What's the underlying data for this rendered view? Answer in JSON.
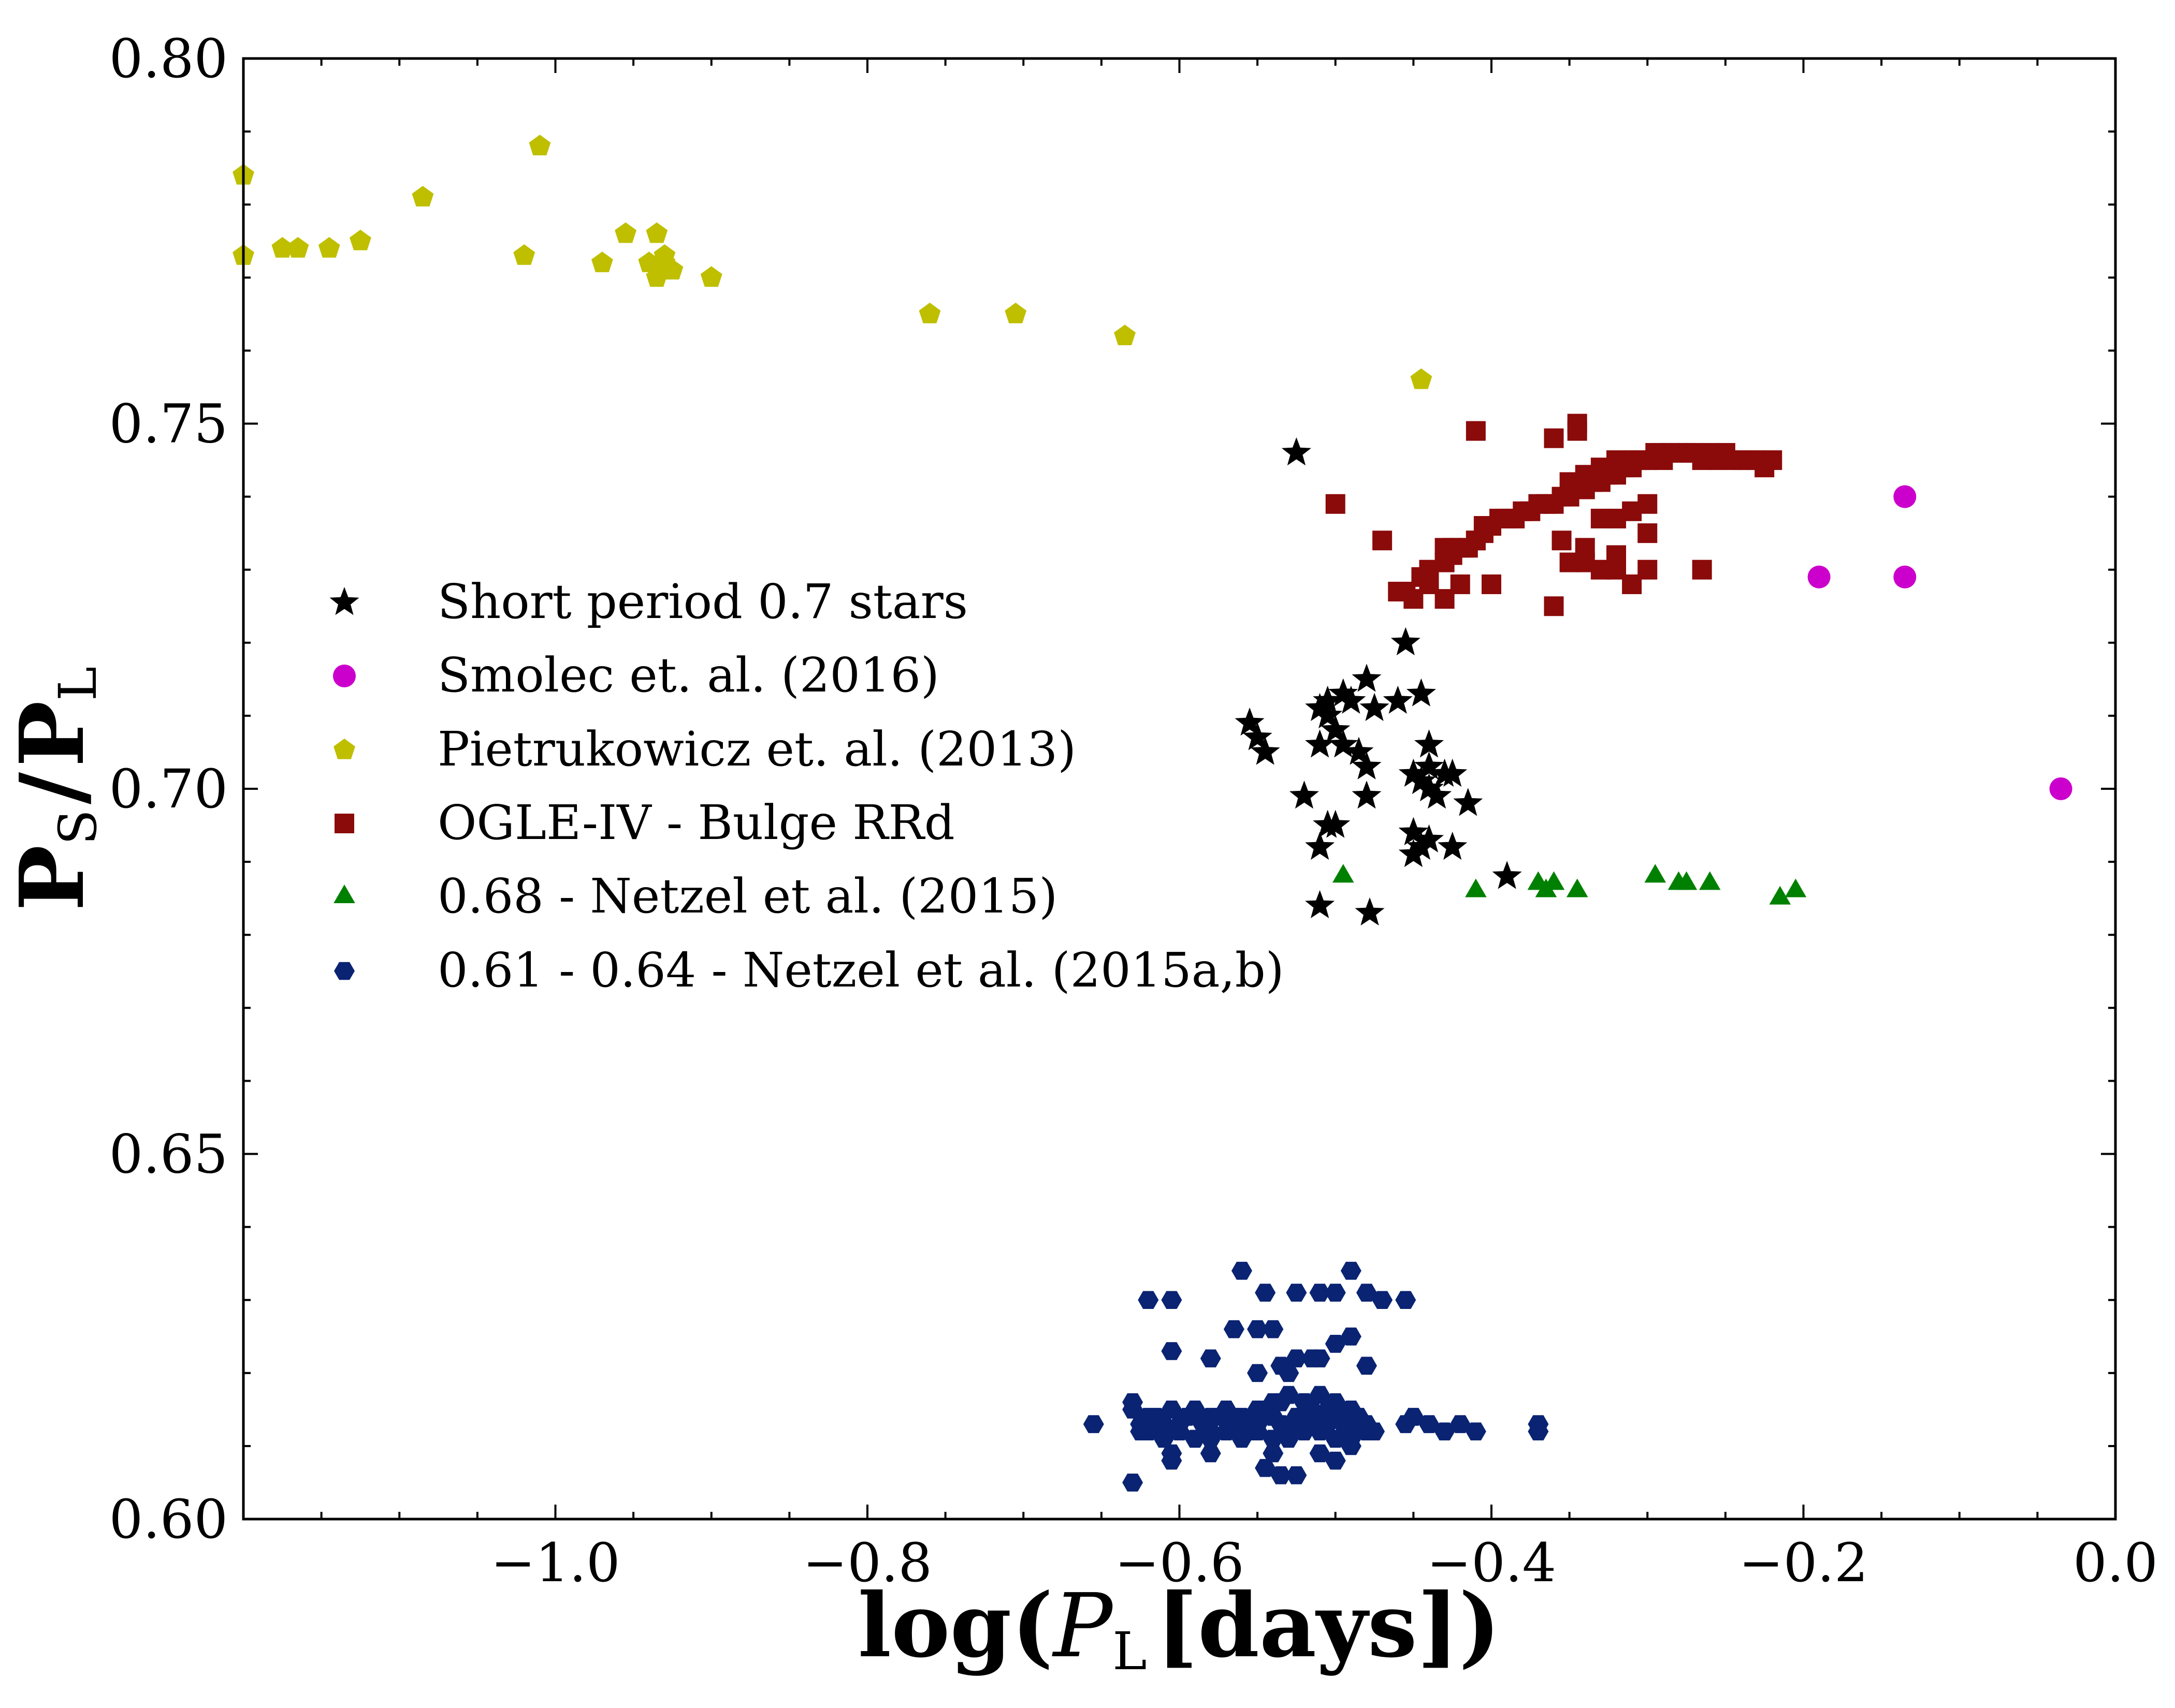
{
  "chart_data": {
    "type": "scatter",
    "xlabel_main": "log(",
    "xlabel_var": "P",
    "xlabel_sub": "L",
    "xlabel_unit": "[days])",
    "ylabel_num": "P",
    "ylabel_num_sub": "S",
    "ylabel_slash": "/",
    "ylabel_den": "P",
    "ylabel_den_sub": "L",
    "xlim": [
      -1.2,
      0.0
    ],
    "ylim": [
      0.6,
      0.8
    ],
    "xticks": [
      -1.0,
      -0.8,
      -0.6,
      -0.4,
      -0.2,
      0.0
    ],
    "xtick_labels": [
      "−1.0",
      "−0.8",
      "−0.6",
      "−0.4",
      "−0.2",
      "0.0"
    ],
    "yticks": [
      0.6,
      0.65,
      0.7,
      0.75,
      0.8
    ],
    "ytick_labels": [
      "0.60",
      "0.65",
      "0.70",
      "0.75",
      "0.80"
    ],
    "grid": false,
    "legend_position": "center-left",
    "series": [
      {
        "name": "Short period 0.7 stars",
        "marker": "star",
        "color": "#000000",
        "x": [
          -0.525,
          -0.555,
          -0.55,
          -0.545,
          -0.51,
          -0.505,
          -0.505,
          -0.495,
          -0.495,
          -0.49,
          -0.51,
          -0.5,
          -0.52,
          -0.485,
          -0.505,
          -0.48,
          -0.48,
          -0.475,
          -0.455,
          -0.46,
          -0.445,
          -0.45,
          -0.44,
          -0.44,
          -0.44,
          -0.43,
          -0.435,
          -0.445,
          -0.45,
          -0.425,
          -0.44,
          -0.45,
          -0.415,
          -0.39,
          -0.5,
          -0.48,
          -0.45,
          -0.445,
          -0.425,
          -0.51
        ],
        "y": [
          0.746,
          0.709,
          0.707,
          0.705,
          0.711,
          0.712,
          0.71,
          0.706,
          0.713,
          0.712,
          0.706,
          0.708,
          0.699,
          0.705,
          0.695,
          0.703,
          0.715,
          0.711,
          0.72,
          0.712,
          0.713,
          0.702,
          0.706,
          0.7,
          0.703,
          0.702,
          0.699,
          0.701,
          0.694,
          0.692,
          0.693,
          0.691,
          0.698,
          0.688,
          0.695,
          0.699,
          0.694,
          0.692,
          0.702,
          0.692
        ],
        "extra_low": {
          "x": [
            -0.51,
            -0.478
          ],
          "y": [
            0.684,
            0.683
          ]
        }
      },
      {
        "name": "Smolec et. al. (2016)",
        "marker": "circle",
        "color": "#cc00cc",
        "x": [
          -0.19,
          -0.135,
          -0.135,
          -0.035
        ],
        "y": [
          0.729,
          0.74,
          0.729,
          0.7
        ]
      },
      {
        "name": "Pietrukowicz et. al. (2013)",
        "marker": "pentagon",
        "color": "#bfbf00",
        "x": [
          -1.2,
          -1.2,
          -1.175,
          -1.165,
          -1.145,
          -1.125,
          -1.085,
          -1.02,
          -1.01,
          -0.97,
          -0.955,
          -0.94,
          -0.935,
          -0.93,
          -0.925,
          -0.93,
          -0.935,
          -0.9,
          -0.76,
          -0.705,
          -0.635,
          -0.445
        ],
        "y": [
          0.773,
          0.784,
          0.774,
          0.774,
          0.774,
          0.775,
          0.781,
          0.773,
          0.788,
          0.772,
          0.776,
          0.772,
          0.77,
          0.772,
          0.771,
          0.773,
          0.776,
          0.77,
          0.765,
          0.765,
          0.762,
          0.756
        ]
      },
      {
        "name": "OGLE-IV - Bulge RRd",
        "marker": "square",
        "color": "#8b0a0a",
        "x": [
          -0.5,
          -0.47,
          -0.46,
          -0.45,
          -0.455,
          -0.445,
          -0.44,
          -0.43,
          -0.425,
          -0.42,
          -0.41,
          -0.4,
          -0.39,
          -0.38,
          -0.37,
          -0.36,
          -0.35,
          -0.34,
          -0.33,
          -0.32,
          -0.31,
          -0.3,
          -0.29,
          -0.28,
          -0.27,
          -0.26,
          -0.25,
          -0.24,
          -0.23,
          -0.22,
          -0.35,
          -0.34,
          -0.33,
          -0.32,
          -0.31,
          -0.3,
          -0.29,
          -0.345,
          -0.335,
          -0.325,
          -0.315,
          -0.305,
          -0.295,
          -0.285,
          -0.275,
          -0.265,
          -0.255,
          -0.245,
          -0.235,
          -0.225,
          -0.41,
          -0.405,
          -0.395,
          -0.385,
          -0.375,
          -0.365,
          -0.355,
          -0.43,
          -0.425,
          -0.415,
          -0.405,
          -0.345,
          -0.345,
          -0.44,
          -0.43,
          -0.42,
          -0.4,
          -0.36,
          -0.35,
          -0.34,
          -0.33,
          -0.32,
          -0.31,
          -0.3,
          -0.265,
          -0.3,
          -0.33,
          -0.355,
          -0.36,
          -0.34,
          -0.32
        ],
        "y": [
          0.739,
          0.734,
          0.727,
          0.726,
          0.727,
          0.729,
          0.73,
          0.731,
          0.733,
          0.733,
          0.734,
          0.736,
          0.737,
          0.738,
          0.739,
          0.739,
          0.74,
          0.741,
          0.742,
          0.743,
          0.744,
          0.745,
          0.745,
          0.746,
          0.746,
          0.746,
          0.746,
          0.745,
          0.745,
          0.745,
          0.742,
          0.743,
          0.744,
          0.745,
          0.745,
          0.745,
          0.746,
          0.741,
          0.742,
          0.743,
          0.744,
          0.745,
          0.746,
          0.746,
          0.746,
          0.745,
          0.745,
          0.745,
          0.745,
          0.744,
          0.734,
          0.736,
          0.737,
          0.737,
          0.738,
          0.739,
          0.74,
          0.733,
          0.732,
          0.733,
          0.735,
          0.749,
          0.75,
          0.728,
          0.726,
          0.728,
          0.728,
          0.725,
          0.731,
          0.731,
          0.73,
          0.73,
          0.728,
          0.73,
          0.73,
          0.735,
          0.737,
          0.734,
          0.748,
          0.733,
          0.732
        ],
        "extra": {
          "x": [
            -0.41,
            -0.32,
            -0.31,
            -0.3
          ],
          "y": [
            0.749,
            0.737,
            0.738,
            0.739
          ]
        }
      },
      {
        "name": "0.68 - Netzel et al. (2015)",
        "marker": "triangle",
        "color": "#008000",
        "x": [
          -0.495,
          -0.41,
          -0.37,
          -0.365,
          -0.36,
          -0.345,
          -0.295,
          -0.28,
          -0.275,
          -0.26,
          -0.215,
          -0.205
        ],
        "y": [
          0.688,
          0.686,
          0.687,
          0.686,
          0.687,
          0.686,
          0.688,
          0.687,
          0.687,
          0.687,
          0.685,
          0.686
        ]
      },
      {
        "name": "0.61 - 0.64 - Netzel et al. (2015a,b)",
        "marker": "hexagon",
        "color": "#0a2372",
        "x": [
          -0.655,
          -0.63,
          -0.63,
          -0.625,
          -0.62,
          -0.615,
          -0.61,
          -0.605,
          -0.6,
          -0.595,
          -0.59,
          -0.585,
          -0.58,
          -0.575,
          -0.57,
          -0.565,
          -0.56,
          -0.555,
          -0.55,
          -0.545,
          -0.54,
          -0.535,
          -0.53,
          -0.525,
          -0.52,
          -0.515,
          -0.51,
          -0.505,
          -0.5,
          -0.495,
          -0.49,
          -0.485,
          -0.48,
          -0.475,
          -0.455,
          -0.45,
          -0.44,
          -0.43,
          -0.42,
          -0.41,
          -0.37,
          -0.37,
          -0.625,
          -0.61,
          -0.6,
          -0.59,
          -0.58,
          -0.57,
          -0.56,
          -0.55,
          -0.54,
          -0.53,
          -0.52,
          -0.51,
          -0.5,
          -0.49,
          -0.48,
          -0.62,
          -0.605,
          -0.58,
          -0.565,
          -0.55,
          -0.535,
          -0.52,
          -0.505,
          -0.49,
          -0.54,
          -0.53,
          -0.52,
          -0.51,
          -0.5,
          -0.5,
          -0.49,
          -0.62,
          -0.605,
          -0.56,
          -0.545,
          -0.54,
          -0.525,
          -0.51,
          -0.5,
          -0.49,
          -0.48,
          -0.47,
          -0.455,
          -0.605,
          -0.58,
          -0.565,
          -0.55,
          -0.535,
          -0.53,
          -0.515,
          -0.55,
          -0.525,
          -0.51,
          -0.5,
          -0.49,
          -0.48,
          -0.63,
          -0.605,
          -0.58,
          -0.545,
          -0.535,
          -0.525,
          -0.54,
          -0.51,
          -0.5,
          -0.49
        ],
        "y": [
          0.613,
          0.605,
          0.615,
          0.613,
          0.612,
          0.614,
          0.613,
          0.609,
          0.613,
          0.614,
          0.615,
          0.613,
          0.612,
          0.614,
          0.615,
          0.613,
          0.614,
          0.612,
          0.613,
          0.615,
          0.614,
          0.613,
          0.612,
          0.614,
          0.613,
          0.615,
          0.614,
          0.613,
          0.614,
          0.613,
          0.612,
          0.614,
          0.613,
          0.612,
          0.613,
          0.614,
          0.613,
          0.612,
          0.613,
          0.612,
          0.613,
          0.612,
          0.612,
          0.611,
          0.612,
          0.611,
          0.611,
          0.612,
          0.611,
          0.612,
          0.611,
          0.611,
          0.612,
          0.612,
          0.611,
          0.611,
          0.612,
          0.614,
          0.615,
          0.614,
          0.614,
          0.615,
          0.616,
          0.616,
          0.615,
          0.615,
          0.616,
          0.617,
          0.616,
          0.617,
          0.616,
          0.615,
          0.614,
          0.63,
          0.63,
          0.634,
          0.631,
          0.626,
          0.631,
          0.631,
          0.631,
          0.634,
          0.631,
          0.63,
          0.63,
          0.623,
          0.622,
          0.626,
          0.626,
          0.621,
          0.62,
          0.622,
          0.62,
          0.622,
          0.622,
          0.624,
          0.625,
          0.621,
          0.616,
          0.608,
          0.609,
          0.607,
          0.606,
          0.606,
          0.609,
          0.609,
          0.608,
          0.61
        ]
      }
    ]
  }
}
